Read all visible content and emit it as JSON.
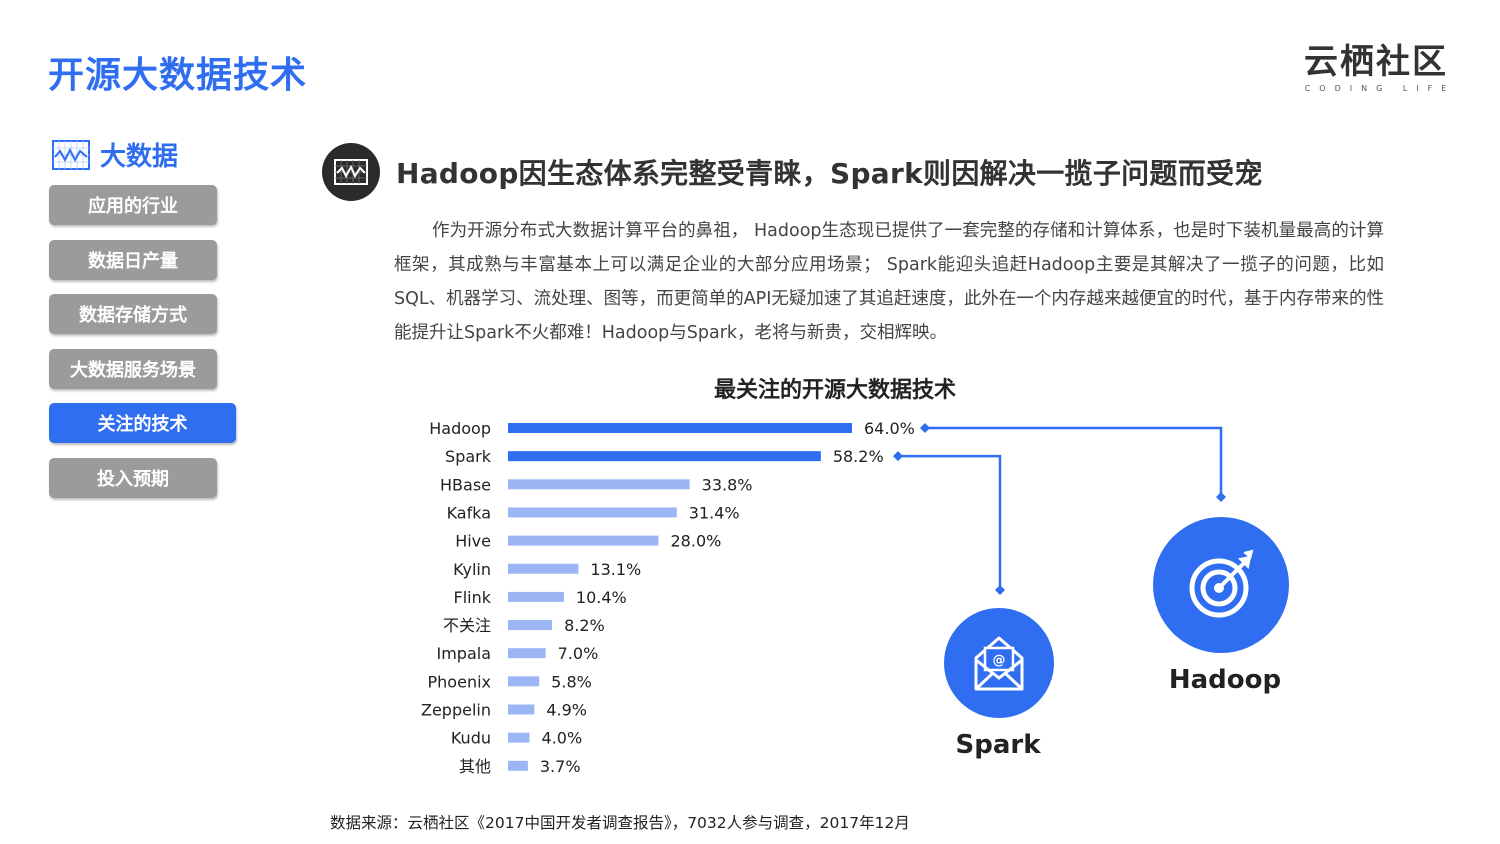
{
  "page_title": "开源大数据技术",
  "logo": {
    "main": "云栖社区",
    "sub": "CODING LIFE"
  },
  "sidebar": {
    "header": "大数据",
    "items": [
      {
        "label": "应用的行业",
        "active": false
      },
      {
        "label": "数据日产量",
        "active": false
      },
      {
        "label": "数据存储方式",
        "active": false
      },
      {
        "label": "大数据服务场景",
        "active": false
      },
      {
        "label": "关注的技术",
        "active": true
      },
      {
        "label": "投入预期",
        "active": false
      }
    ]
  },
  "section": {
    "heading": "Hadoop因生态体系完整受青睐，Spark则因解决一揽子问题而受宠",
    "body": "作为开源分布式大数据计算平台的鼻祖， Hadoop生态现已提供了一套完整的存储和计算体系，也是时下装机量最高的计算框架，其成熟与丰富基本上可以满足企业的大部分应用场景； Spark能迎头追赶Hadoop主要是其解决了一揽子的问题，比如 SQL、机器学习、流处理、图等，而更简单的API无疑加速了其追赶速度，此外在一个内存越来越便宜的时代，基于内存带来的性能提升让Spark不火都难！Hadoop与Spark，老将与新贵，交相辉映。"
  },
  "chart_data": {
    "type": "bar",
    "orientation": "horizontal",
    "title": "最关注的开源大数据技术",
    "categories": [
      "Hadoop",
      "Spark",
      "HBase",
      "Kafka",
      "Hive",
      "Kylin",
      "Flink",
      "不关注",
      "Impala",
      "Phoenix",
      "Zeppelin",
      "Kudu",
      "其他"
    ],
    "values": [
      64.0,
      58.2,
      33.8,
      31.4,
      28.0,
      13.1,
      10.4,
      8.2,
      7.0,
      5.8,
      4.9,
      4.0,
      3.7
    ],
    "value_labels": [
      "64.0%",
      "58.2%",
      "33.8%",
      "31.4%",
      "28.0%",
      "13.1%",
      "10.4%",
      "8.2%",
      "7.0%",
      "5.8%",
      "4.9%",
      "4.0%",
      "3.7%"
    ],
    "unit": "%",
    "highlight": [
      "Hadoop",
      "Spark"
    ],
    "colors": {
      "highlight": "#2f6ef0",
      "normal": "#9bb5f5"
    }
  },
  "callouts": [
    {
      "label": "Hadoop",
      "icon": "target-icon",
      "color": "#2f6ef0"
    },
    {
      "label": "Spark",
      "icon": "mail-icon",
      "color": "#2f6ef0"
    }
  ],
  "source": "数据来源：云栖社区《2017中国开发者调查报告》，7032人参与调查，2017年12月"
}
